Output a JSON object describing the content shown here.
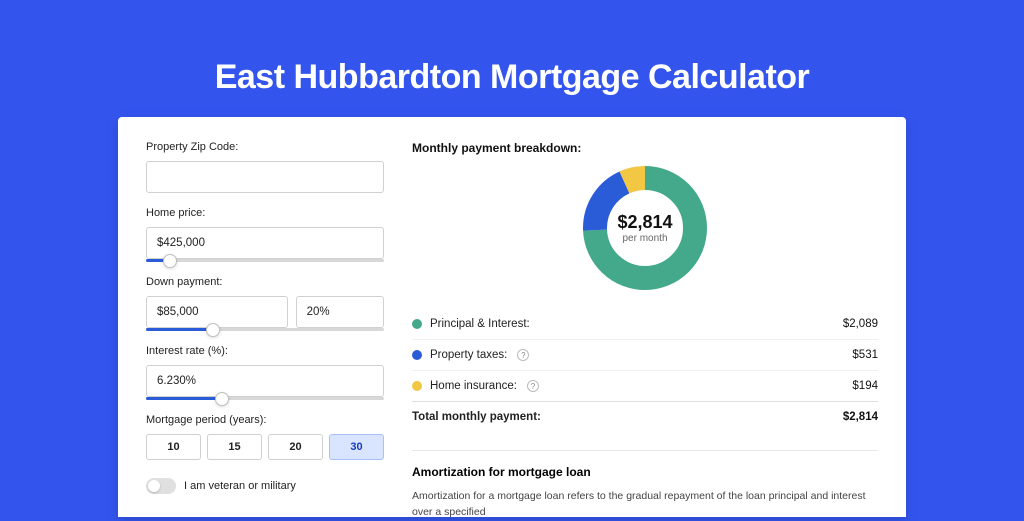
{
  "page": {
    "title": "East Hubbardton Mortgage Calculator",
    "background_color": "#3355ee",
    "title_color": "#ffffff",
    "title_fontsize": 34
  },
  "form": {
    "zip": {
      "label": "Property Zip Code:",
      "value": ""
    },
    "home_price": {
      "label": "Home price:",
      "value": "$425,000",
      "slider_pct": 10
    },
    "down_payment": {
      "label": "Down payment:",
      "amount": "$85,000",
      "percent": "20%",
      "slider_pct": 28
    },
    "interest_rate": {
      "label": "Interest rate (%):",
      "value": "6.230%",
      "slider_pct": 32
    },
    "mortgage_period": {
      "label": "Mortgage period (years):",
      "options": [
        "10",
        "15",
        "20",
        "30"
      ],
      "selected": "30"
    },
    "veteran": {
      "label": "I am veteran or military",
      "checked": false
    }
  },
  "breakdown": {
    "heading": "Monthly payment breakdown:",
    "donut": {
      "amount": "$2,814",
      "sub": "per month",
      "segments": [
        {
          "label": "Principal & Interest:",
          "value": "$2,089",
          "color": "#44a98a",
          "pct": 74.2,
          "has_info": false
        },
        {
          "label": "Property taxes:",
          "value": "$531",
          "color": "#2a5cd8",
          "pct": 18.9,
          "has_info": true
        },
        {
          "label": "Home insurance:",
          "value": "$194",
          "color": "#f2c744",
          "pct": 6.9,
          "has_info": true
        }
      ],
      "stroke_width": 24,
      "radius": 50,
      "background_color": "#ffffff"
    },
    "total": {
      "label": "Total monthly payment:",
      "value": "$2,814"
    }
  },
  "amortization": {
    "heading": "Amortization for mortgage loan",
    "text": "Amortization for a mortgage loan refers to the gradual repayment of the loan principal and interest over a specified"
  }
}
